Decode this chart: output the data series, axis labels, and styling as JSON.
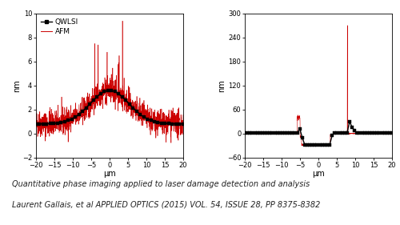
{
  "left_plot": {
    "xlim": [
      -20,
      20
    ],
    "ylim": [
      -2,
      10
    ],
    "xlabel": "μm",
    "ylabel": "nm",
    "yticks": [
      -2,
      0,
      2,
      4,
      6,
      8,
      10
    ],
    "xticks": [
      -20,
      -15,
      -10,
      -5,
      0,
      5,
      10,
      15,
      20
    ],
    "qwlsi_color": "#000000",
    "afm_color": "#cc0000",
    "legend_labels": [
      "QWLSI",
      "AFM"
    ]
  },
  "right_plot": {
    "xlim": [
      -20,
      20
    ],
    "ylim": [
      -60,
      300
    ],
    "xlabel": "μm",
    "ylabel": "nm",
    "yticks": [
      -60,
      0,
      60,
      120,
      180,
      240,
      300
    ],
    "xticks": [
      -20,
      -15,
      -10,
      -5,
      0,
      5,
      10,
      15,
      20
    ],
    "qwlsi_color": "#000000",
    "afm_color": "#cc0000"
  },
  "caption_line1": "Quantitative phase imaging applied to laser damage detection and analysis",
  "caption_line2": "Laurent Gallais, et al APPLIED OPTICS (2015) VOL. 54, ISSUE 28, PP 8375-8382",
  "caption_fontsize": 7.0,
  "background_color": "#ffffff"
}
